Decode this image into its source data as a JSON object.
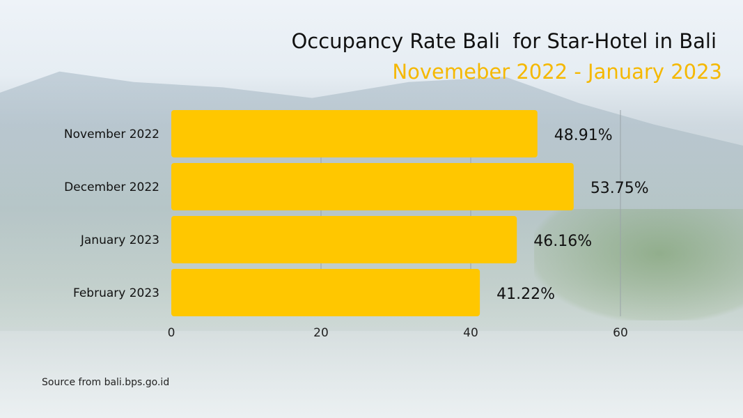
{
  "chart_data": {
    "type": "bar",
    "orientation": "horizontal",
    "title": "Occupancy Rate Bali  for Star-Hotel in Bali",
    "subtitle": "Novemeber 2022 - January 2023",
    "categories": [
      "November 2022",
      "December 2022",
      "January 2023",
      "February 2023"
    ],
    "values": [
      48.91,
      53.75,
      46.16,
      41.22
    ],
    "data_labels": [
      "48.91%",
      "53.75%",
      "46.16%",
      "41.22%"
    ],
    "xlim": [
      0,
      60
    ],
    "xticks": [
      0,
      20,
      40,
      60
    ],
    "grid": true,
    "bar_color": "#FFC700",
    "source": "Source from bali.bps.go.id"
  }
}
